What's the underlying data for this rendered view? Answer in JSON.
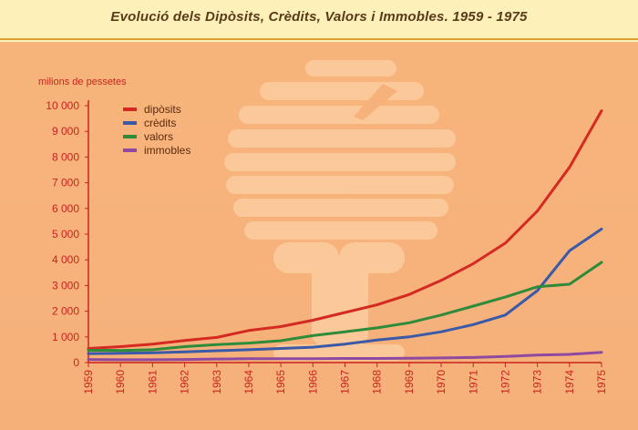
{
  "title": "Evolució dels Dipòsits, Crèdits, Valors i Immobles. 1959 - 1975",
  "colors": {
    "background": "#fdf0b8",
    "panel": "#f7b27c",
    "axis": "#c8241e",
    "watermark": "#fbc89a"
  },
  "chart_data": {
    "type": "line",
    "title": "Evolució dels Dipòsits, Crèdits, Valors i Immobles. 1959 - 1975",
    "ylabel": "milions de pessetes",
    "xlabel": "",
    "ylim": [
      0,
      10000
    ],
    "yticks": [
      0,
      1000,
      2000,
      3000,
      4000,
      5000,
      6000,
      7000,
      8000,
      9000,
      10000
    ],
    "ytick_labels": [
      "0",
      "1 000",
      "2 000",
      "3 000",
      "4 000",
      "5 000",
      "6 000",
      "7 000",
      "8 000",
      "9 000",
      "10 000"
    ],
    "x": [
      "1959",
      "1960",
      "1961",
      "1962",
      "1963",
      "1964",
      "1965",
      "1966",
      "1967",
      "1968",
      "1969",
      "1970",
      "1971",
      "1972",
      "1973",
      "1974",
      "1975"
    ],
    "grid": false,
    "legend_position": "top-left",
    "series": [
      {
        "name": "dipòsits",
        "color": "#d42a22",
        "values": [
          550,
          620,
          720,
          860,
          980,
          1250,
          1400,
          1650,
          1950,
          2250,
          2650,
          3200,
          3850,
          4650,
          5900,
          7600,
          9800
        ]
      },
      {
        "name": "crèdits",
        "color": "#3a5aa8",
        "values": [
          350,
          360,
          380,
          420,
          460,
          500,
          550,
          600,
          720,
          880,
          1000,
          1200,
          1480,
          1850,
          2800,
          4350,
          5200
        ]
      },
      {
        "name": "valors",
        "color": "#2e8b3a",
        "values": [
          480,
          470,
          500,
          620,
          700,
          760,
          850,
          1050,
          1200,
          1350,
          1550,
          1850,
          2200,
          2550,
          2950,
          3050,
          3900
        ]
      },
      {
        "name": "immobles",
        "color": "#8e4aa0",
        "values": [
          120,
          110,
          110,
          120,
          140,
          150,
          150,
          150,
          160,
          160,
          170,
          180,
          200,
          240,
          290,
          320,
          400
        ]
      }
    ]
  }
}
